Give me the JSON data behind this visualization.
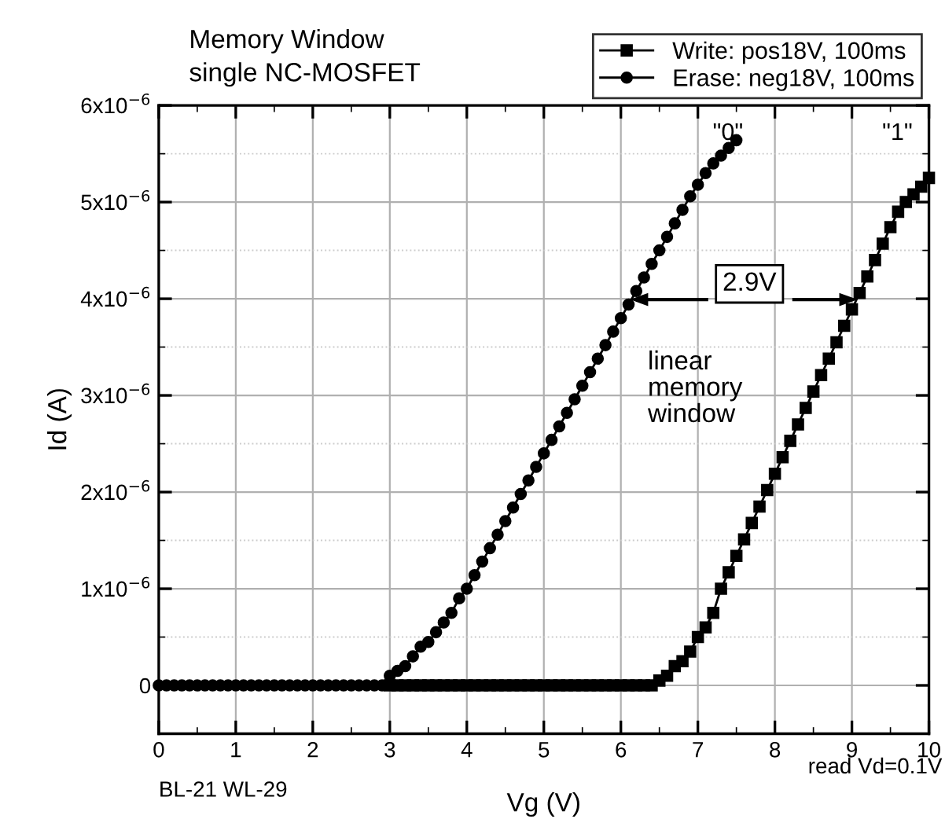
{
  "chart_data": {
    "type": "line",
    "title": "Memory Window",
    "subtitle": "single NC-MOSFET",
    "xlabel": "Vg (V)",
    "ylabel": "Id (A)",
    "xlim": [
      0,
      10
    ],
    "xticks": [
      0,
      1,
      2,
      3,
      4,
      5,
      6,
      7,
      8,
      9,
      10
    ],
    "ylim": [
      -5e-07,
      6e-06
    ],
    "yticks": [
      0,
      {
        "value": 1e-06,
        "label": "1x10$^{−6}$"
      },
      {
        "value": 2e-06,
        "label": "2x10$^{−6}$"
      },
      {
        "value": 3e-06,
        "label": "3x10$^{−6}$"
      },
      {
        "value": 4e-06,
        "label": "4x10$^{−6}$"
      },
      {
        "value": 5e-06,
        "label": "5x10$^{−6}$"
      },
      {
        "value": 6e-06,
        "label": "6x10$^{−6}$"
      }
    ],
    "grid": true,
    "legend": "top right",
    "line_style": "solid",
    "series": [
      {
        "name": "Write: pos18V, 100ms",
        "color": "#000000",
        "marker": "square",
        "x": [
          3.0,
          3.1,
          3.2,
          3.3,
          3.4,
          3.5,
          3.6,
          3.7,
          3.8,
          3.9,
          4.0,
          4.1,
          4.2,
          4.3,
          4.4,
          4.5,
          4.6,
          4.7,
          4.8,
          4.9,
          5.0,
          5.1,
          5.2,
          5.3,
          5.4,
          5.5,
          5.6,
          5.7,
          5.8,
          5.9,
          6.0,
          6.1,
          6.2,
          6.3,
          6.4,
          6.5,
          6.6,
          6.7,
          6.8,
          6.9,
          7.0,
          7.1,
          7.2,
          7.3,
          7.4,
          7.5,
          7.6,
          7.7,
          7.8,
          7.9,
          8.0,
          8.1,
          8.2,
          8.3,
          8.4,
          8.5,
          8.6,
          8.7,
          8.8,
          8.9,
          9.0,
          9.1,
          9.2,
          9.3,
          9.4,
          9.5,
          9.6,
          9.7,
          9.8,
          9.9,
          10.0
        ],
        "values": [
          0,
          0,
          0,
          0,
          0,
          0,
          0,
          0,
          0,
          0,
          0,
          0,
          0,
          0,
          0,
          0,
          0,
          0,
          0,
          0,
          0,
          0,
          0,
          0,
          0,
          0,
          0,
          0,
          0,
          0,
          0,
          0,
          0,
          0,
          0,
          5e-08,
          1e-07,
          2e-07,
          2.5e-07,
          3.5e-07,
          5e-07,
          6e-07,
          7.5e-07,
          1e-06,
          1.17e-06,
          1.34e-06,
          1.51e-06,
          1.68e-06,
          1.85e-06,
          2.02e-06,
          2.19e-06,
          2.36e-06,
          2.53e-06,
          2.7e-06,
          2.87e-06,
          3.04e-06,
          3.21e-06,
          3.38e-06,
          3.55e-06,
          3.72e-06,
          3.89e-06,
          4.06e-06,
          4.23e-06,
          4.4e-06,
          4.57e-06,
          4.74e-06,
          4.9e-06,
          5e-06,
          5.08e-06,
          5.16e-06,
          5.25e-06
        ]
      },
      {
        "name": "Erase: neg18V, 100ms",
        "color": "#000000",
        "marker": "circle",
        "x": [
          0.0,
          0.1,
          0.2,
          0.3,
          0.4,
          0.5,
          0.6,
          0.7,
          0.8,
          0.9,
          1.0,
          1.1,
          1.2,
          1.3,
          1.4,
          1.5,
          1.6,
          1.7,
          1.8,
          1.9,
          2.0,
          2.1,
          2.2,
          2.3,
          2.4,
          2.5,
          2.6,
          2.7,
          2.8,
          2.9,
          3.0,
          3.1,
          3.2,
          3.3,
          3.4,
          3.5,
          3.6,
          3.7,
          3.8,
          3.9,
          4.0,
          4.1,
          4.2,
          4.3,
          4.4,
          4.5,
          4.6,
          4.7,
          4.8,
          4.9,
          5.0,
          5.1,
          5.2,
          5.3,
          5.4,
          5.5,
          5.6,
          5.7,
          5.8,
          5.9,
          6.0,
          6.1,
          6.2,
          6.3,
          6.4,
          6.5,
          6.6,
          6.7,
          6.8,
          6.9,
          7.0,
          7.1,
          7.2,
          7.3,
          7.4,
          7.5
        ],
        "values": [
          0,
          0,
          0,
          0,
          0,
          0,
          0,
          0,
          0,
          0,
          0,
          0,
          0,
          0,
          0,
          0,
          0,
          0,
          0,
          0,
          0,
          0,
          0,
          0,
          0,
          0,
          0,
          0,
          0,
          0,
          1e-07,
          1.5e-07,
          2e-07,
          3e-07,
          4e-07,
          4.5e-07,
          5.5e-07,
          6.5e-07,
          7.5e-07,
          9e-07,
          1e-06,
          1.14e-06,
          1.28e-06,
          1.42e-06,
          1.56e-06,
          1.7e-06,
          1.84e-06,
          1.98e-06,
          2.12e-06,
          2.26e-06,
          2.4e-06,
          2.54e-06,
          2.68e-06,
          2.82e-06,
          2.96e-06,
          3.1e-06,
          3.24e-06,
          3.38e-06,
          3.52e-06,
          3.66e-06,
          3.8e-06,
          3.94e-06,
          4.08e-06,
          4.22e-06,
          4.36e-06,
          4.5e-06,
          4.64e-06,
          4.78e-06,
          4.92e-06,
          5.06e-06,
          5.18e-06,
          5.3e-06,
          5.4e-06,
          5.48e-06,
          5.56e-06,
          5.64e-06
        ]
      }
    ],
    "annotations": [
      "\"0\"",
      "\"1\"",
      "2.9V",
      "linear memory window",
      "BL-21 WL-29",
      "read Vd=0.1V"
    ]
  }
}
